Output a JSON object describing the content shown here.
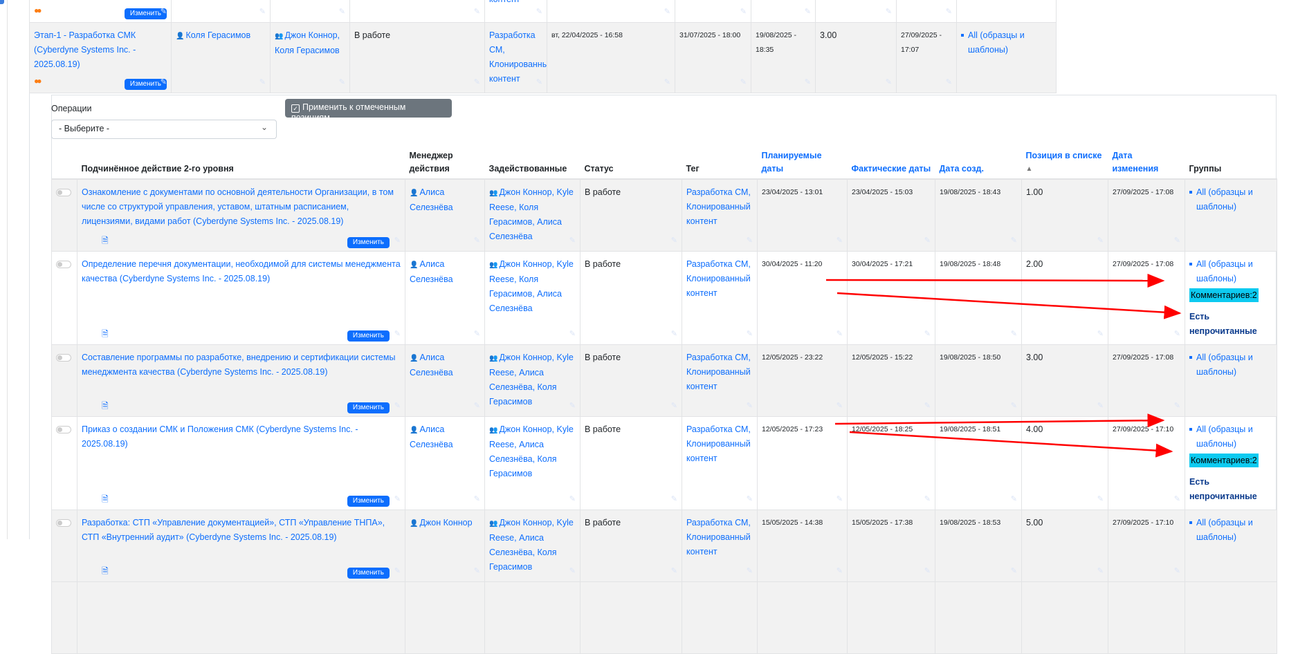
{
  "edit_label": "Изменить",
  "top_partial": {
    "tag_tail": "контент"
  },
  "stage": {
    "name": "Этап-1 - Разработка СМК (Cyberdyne Systems Inc. - 2025.08.19)",
    "manager": "Коля Герасимов",
    "involved": "Джон Коннор, Коля Герасимов",
    "status": "В работе",
    "tag": "Разработка СМ, Клонированный контент",
    "planned": "вт, 22/04/2025 - 16:58",
    "actual": "31/07/2025 - 18:00",
    "created": "19/08/2025 - 18:35",
    "position": "3.00",
    "modified": "27/09/2025 - 17:07",
    "group": "All (образцы и шаблоны)"
  },
  "operations": {
    "label": "Операции",
    "select_value": "- Выберите -",
    "apply_label": "Применить к отмеченным позициям"
  },
  "columns": [
    "Подчинённое действие 2-го уровня",
    "Менеджер действия",
    "Задействованные",
    "Статус",
    "Тег",
    "Планируемые даты",
    "Фактические даты",
    "Дата созд.",
    "Позиция в списке",
    "Дата изменения",
    "Группы"
  ],
  "sort_indicator": "▲",
  "rows": [
    {
      "name": "Ознакомление с документами по основной деятельности Организации, в том числе со структурой управления, уставом, штатным расписанием, лицензиями, видами работ (Cyberdyne Systems Inc. - 2025.08.19)",
      "manager": "Алиса Селезнёва",
      "involved": "Джон Коннор, Kyle Reese, Коля Герасимов, Алиса Селезнёва",
      "status": "В работе",
      "tag": "Разработка СМ, Клонированный контент",
      "planned": "23/04/2025 - 13:01",
      "actual": "23/04/2025 - 15:03",
      "created": "19/08/2025 - 18:43",
      "position": "1.00",
      "modified": "27/09/2025 - 17:08",
      "group": "All (образцы и шаблоны)",
      "comments": "",
      "unread": ""
    },
    {
      "name": "Определение перечня документации, необходимой для системы менеджмента качества (Cyberdyne Systems Inc. - 2025.08.19)",
      "manager": "Алиса Селезнёва",
      "involved": "Джон Коннор, Kyle Reese, Коля Герасимов, Алиса Селезнёва",
      "status": "В работе",
      "tag": "Разработка СМ, Клонированный контент",
      "planned": "30/04/2025 - 11:20",
      "actual": "30/04/2025 - 17:21",
      "created": "19/08/2025 - 18:48",
      "position": "2.00",
      "modified": "27/09/2025 - 17:08",
      "group": "All (образцы и шаблоны)",
      "comments": "Комментариев:2",
      "unread": "Есть непрочитанные"
    },
    {
      "name": "Составление программы по разработке, внедрению и сертификации системы менеджмента качества (Cyberdyne Systems Inc. - 2025.08.19)",
      "manager": "Алиса Селезнёва",
      "involved": "Джон Коннор, Kyle Reese, Алиса Селезнёва, Коля Герасимов",
      "status": "В работе",
      "tag": "Разработка СМ, Клонированный контент",
      "planned": "12/05/2025 - 23:22",
      "actual": "12/05/2025 - 15:22",
      "created": "19/08/2025 - 18:50",
      "position": "3.00",
      "modified": "27/09/2025 - 17:08",
      "group": "All (образцы и шаблоны)",
      "comments": "",
      "unread": ""
    },
    {
      "name": "Приказ о создании СМК и Положения СМК (Cyberdyne Systems Inc. - 2025.08.19)",
      "manager": "Алиса Селезнёва",
      "involved": "Джон Коннор, Kyle Reese, Алиса Селезнёва, Коля Герасимов",
      "status": "В работе",
      "tag": "Разработка СМ, Клонированный контент",
      "planned": "12/05/2025 - 17:23",
      "actual": "12/05/2025 - 18:25",
      "created": "19/08/2025 - 18:51",
      "position": "4.00",
      "modified": "27/09/2025 - 17:10",
      "group": "All (образцы и шаблоны)",
      "comments": "Комментариев:2",
      "unread": "Есть непрочитанные"
    },
    {
      "name": "Разработка: СТП «Управление документацией», СТП «Управление ТНПА», СТП «Внутренний аудит» (Cyberdyne Systems Inc. - 2025.08.19)",
      "manager": "Джон Коннор",
      "involved": "Джон Коннор, Kyle Reese, Алиса Селезнёва, Коля Герасимов",
      "status": "В работе",
      "tag": "Разработка СМ, Клонированный контент",
      "planned": "15/05/2025 - 14:38",
      "actual": "15/05/2025 - 17:38",
      "created": "19/08/2025 - 18:53",
      "position": "5.00",
      "modified": "27/09/2025 - 17:10",
      "group": "All (образцы и шаблоны)",
      "comments": "",
      "unread": ""
    }
  ],
  "colors": {
    "link": "#0d6efd",
    "badge": "#0dcaf0",
    "annotation_arrow": "#ff0000",
    "stripe": "#f2f2f2"
  }
}
